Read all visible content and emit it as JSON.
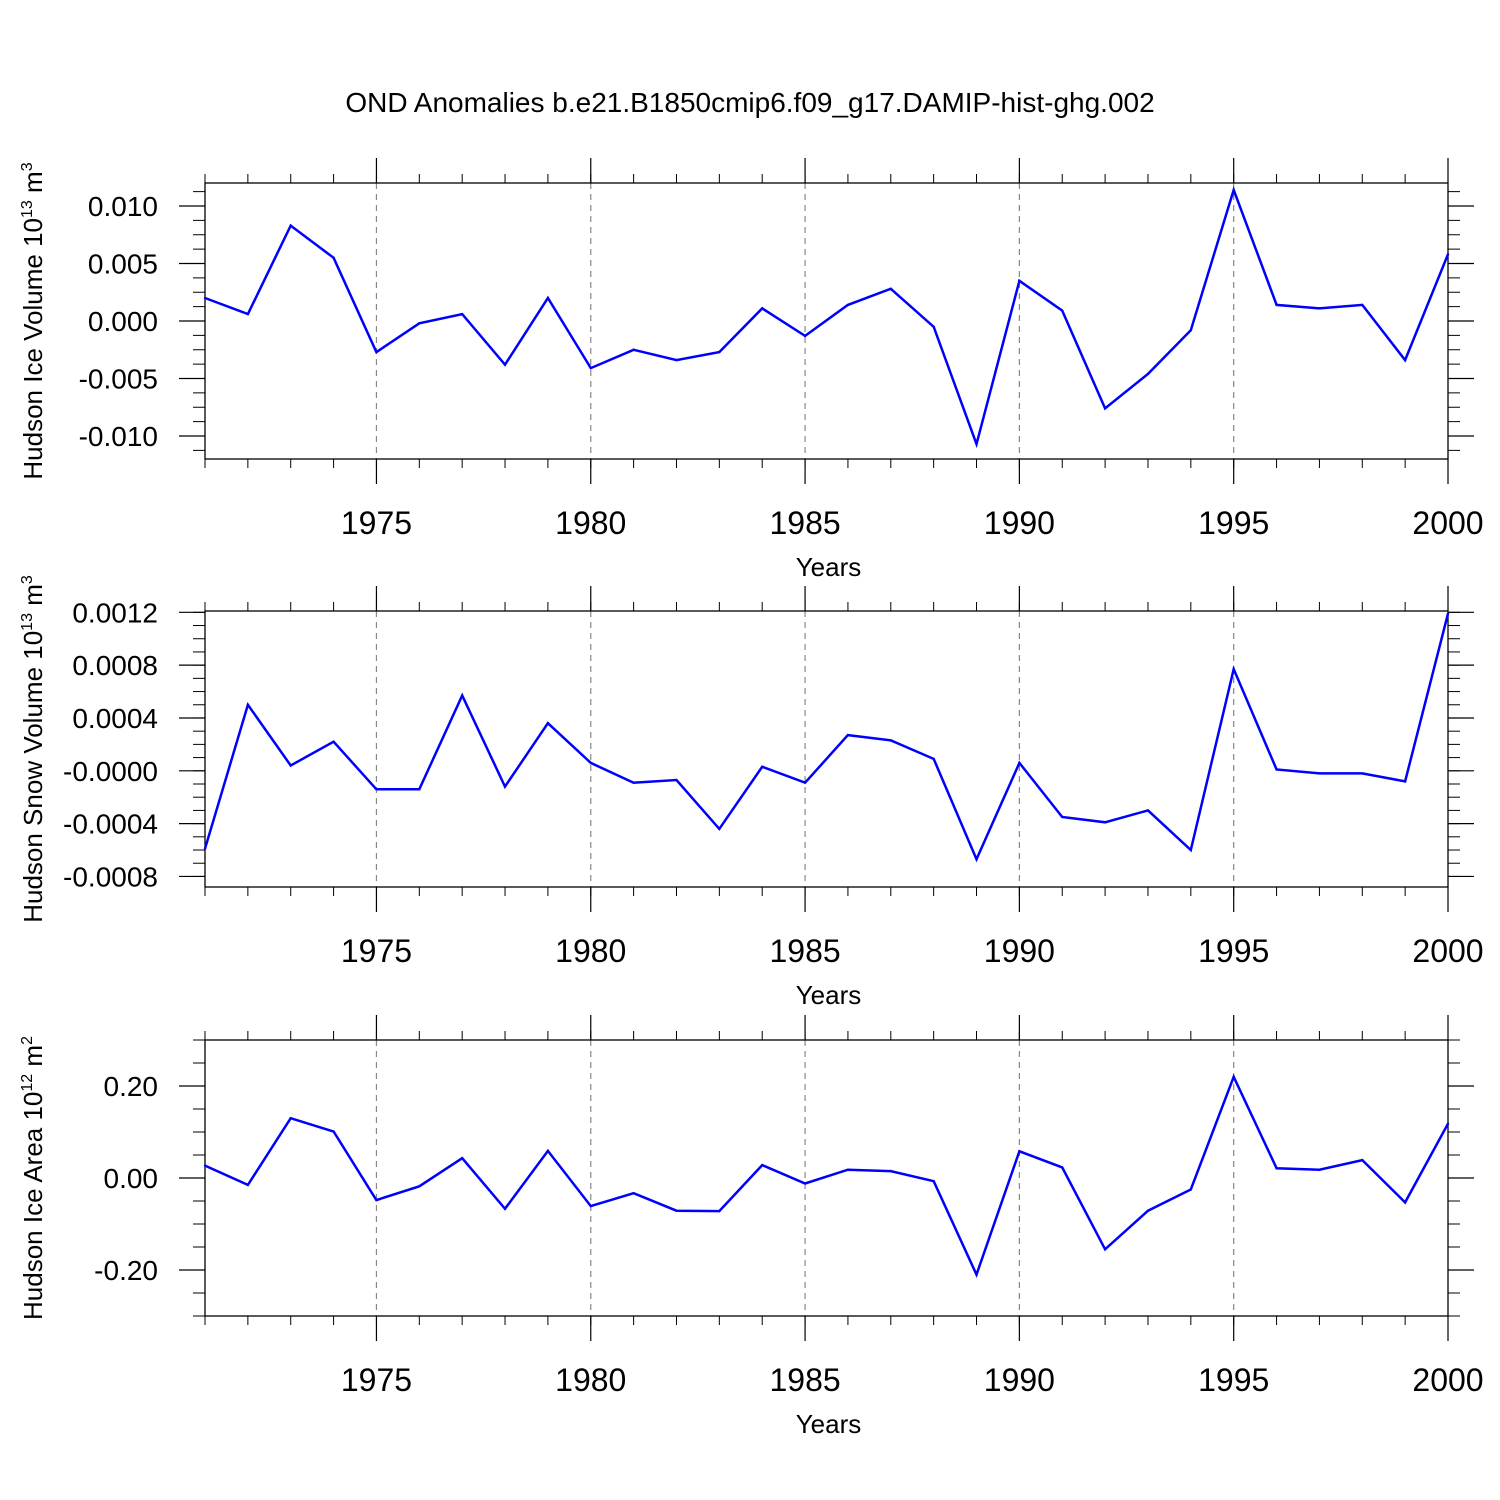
{
  "figure": {
    "title": "OND Anomalies b.e21.B1850cmip6.f09_g17.DAMIP-hist-ghg.002"
  },
  "chart_data": [
    {
      "type": "line",
      "title": "",
      "xlabel": "Years",
      "ylabel": {
        "pre": "Hudson Ice Volume 10",
        "sup": "13",
        "mid": " m",
        "sup2": "3"
      },
      "xlim": [
        1971,
        2000
      ],
      "ylim": [
        -0.012,
        0.012
      ],
      "xticks": [
        1975,
        1980,
        1985,
        1990,
        1995,
        2000
      ],
      "xtick_labels": [
        "1975",
        "1980",
        "1985",
        "1990",
        "1995",
        "2000"
      ],
      "yticks": [
        0.01,
        0.005,
        0.0,
        -0.005,
        -0.01
      ],
      "ytick_labels": [
        "0.010",
        "0.005",
        "0.000",
        "-0.005",
        "-0.010"
      ],
      "grid": "dashed vertical lines at major x ticks",
      "line_color": "#0000ff",
      "series": [
        {
          "name": "Hudson Ice Volume",
          "x": [
            1971,
            1972,
            1973,
            1974,
            1975,
            1976,
            1977,
            1978,
            1979,
            1980,
            1981,
            1982,
            1983,
            1984,
            1985,
            1986,
            1987,
            1988,
            1989,
            1990,
            1991,
            1992,
            1993,
            1994,
            1995,
            1996,
            1997,
            1998,
            1999,
            2000
          ],
          "values": [
            0.002,
            0.0006,
            0.0083,
            0.0055,
            -0.0027,
            -0.0002,
            0.0006,
            -0.0038,
            0.002,
            -0.0041,
            -0.0025,
            -0.0034,
            -0.0027,
            0.0011,
            -0.0013,
            0.0014,
            0.0028,
            -0.0005,
            -0.0107,
            0.0035,
            0.0009,
            -0.0076,
            -0.0046,
            -0.0008,
            0.0114,
            0.0014,
            0.0011,
            0.0014,
            -0.0034,
            0.0058
          ]
        }
      ]
    },
    {
      "type": "line",
      "title": "",
      "xlabel": "Years",
      "ylabel": {
        "pre": "Hudson Snow Volume 10",
        "sup": "13",
        "mid": " m",
        "sup2": "3"
      },
      "xlim": [
        1971,
        2000
      ],
      "ylim": [
        -0.00088,
        0.00121
      ],
      "xticks": [
        1975,
        1980,
        1985,
        1990,
        1995,
        2000
      ],
      "xtick_labels": [
        "1975",
        "1980",
        "1985",
        "1990",
        "1995",
        "2000"
      ],
      "yticks": [
        0.0012,
        0.0008,
        0.0004,
        0.0,
        -0.0004,
        -0.0008
      ],
      "ytick_labels": [
        "0.0012",
        "0.0008",
        "0.0004",
        "-0.0000",
        "-0.0004",
        "-0.0008"
      ],
      "grid": "dashed vertical lines at major x ticks",
      "line_color": "#0000ff",
      "series": [
        {
          "name": "Hudson Snow Volume",
          "x": [
            1971,
            1972,
            1973,
            1974,
            1975,
            1976,
            1977,
            1978,
            1979,
            1980,
            1981,
            1982,
            1983,
            1984,
            1985,
            1986,
            1987,
            1988,
            1989,
            1990,
            1991,
            1992,
            1993,
            1994,
            1995,
            1996,
            1997,
            1998,
            1999,
            2000
          ],
          "values": [
            -0.00059,
            0.0005,
            4e-05,
            0.00022,
            -0.00014,
            -0.00014,
            0.00057,
            -0.00012,
            0.00036,
            6e-05,
            -9e-05,
            -7e-05,
            -0.00044,
            3e-05,
            -9e-05,
            0.00027,
            0.00023,
            9e-05,
            -0.00067,
            6e-05,
            -0.00035,
            -0.00039,
            -0.0003,
            -0.0006,
            0.00077,
            1e-05,
            -2e-05,
            -2e-05,
            -8e-05,
            0.00119
          ]
        }
      ]
    },
    {
      "type": "line",
      "title": "",
      "xlabel": "Years",
      "ylabel": {
        "pre": "Hudson Ice Area 10",
        "sup": "12",
        "mid": " m",
        "sup2": "2"
      },
      "xlim": [
        1971,
        2000
      ],
      "ylim": [
        -0.3,
        0.3
      ],
      "xticks": [
        1975,
        1980,
        1985,
        1990,
        1995,
        2000
      ],
      "xtick_labels": [
        "1975",
        "1980",
        "1985",
        "1990",
        "1995",
        "2000"
      ],
      "yticks": [
        0.2,
        0.0,
        -0.2
      ],
      "ytick_labels": [
        "0.20",
        "0.00",
        "-0.20"
      ],
      "grid": "dashed vertical lines at major x ticks",
      "line_color": "#0000ff",
      "series": [
        {
          "name": "Hudson Ice Area",
          "x": [
            1971,
            1972,
            1973,
            1974,
            1975,
            1976,
            1977,
            1978,
            1979,
            1980,
            1981,
            1982,
            1983,
            1984,
            1985,
            1986,
            1987,
            1988,
            1989,
            1990,
            1991,
            1992,
            1993,
            1994,
            1995,
            1996,
            1997,
            1998,
            1999,
            2000
          ],
          "values": [
            0.027,
            -0.015,
            0.13,
            0.101,
            -0.048,
            -0.018,
            0.043,
            -0.067,
            0.059,
            -0.061,
            -0.033,
            -0.071,
            -0.072,
            0.028,
            -0.012,
            0.018,
            0.015,
            -0.007,
            -0.21,
            0.058,
            0.023,
            -0.155,
            -0.071,
            -0.025,
            0.22,
            0.021,
            0.018,
            0.039,
            -0.053,
            0.118
          ]
        }
      ]
    }
  ]
}
